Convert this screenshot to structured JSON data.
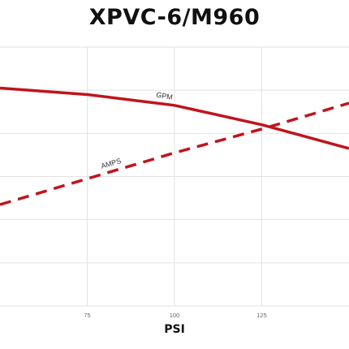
{
  "chart_data": {
    "type": "line",
    "title": "XPVC-6/M960",
    "xlabel": "PSI",
    "ylabel": "",
    "x_ticks": [
      75,
      100,
      125
    ],
    "xlim": [
      50,
      150
    ],
    "ylim": [
      0,
      6
    ],
    "grid": true,
    "series": [
      {
        "name": "GPM",
        "style": "solid",
        "color": "#c0141c",
        "points": [
          [
            50,
            5.05
          ],
          [
            75,
            4.9
          ],
          [
            100,
            4.65
          ],
          [
            125,
            4.2
          ],
          [
            150,
            3.65
          ]
        ]
      },
      {
        "name": "AMPS",
        "style": "dashed",
        "color": "#c0141c",
        "points": [
          [
            50,
            2.35
          ],
          [
            75,
            2.95
          ],
          [
            100,
            3.55
          ],
          [
            125,
            4.1
          ],
          [
            150,
            4.7
          ]
        ]
      }
    ]
  }
}
